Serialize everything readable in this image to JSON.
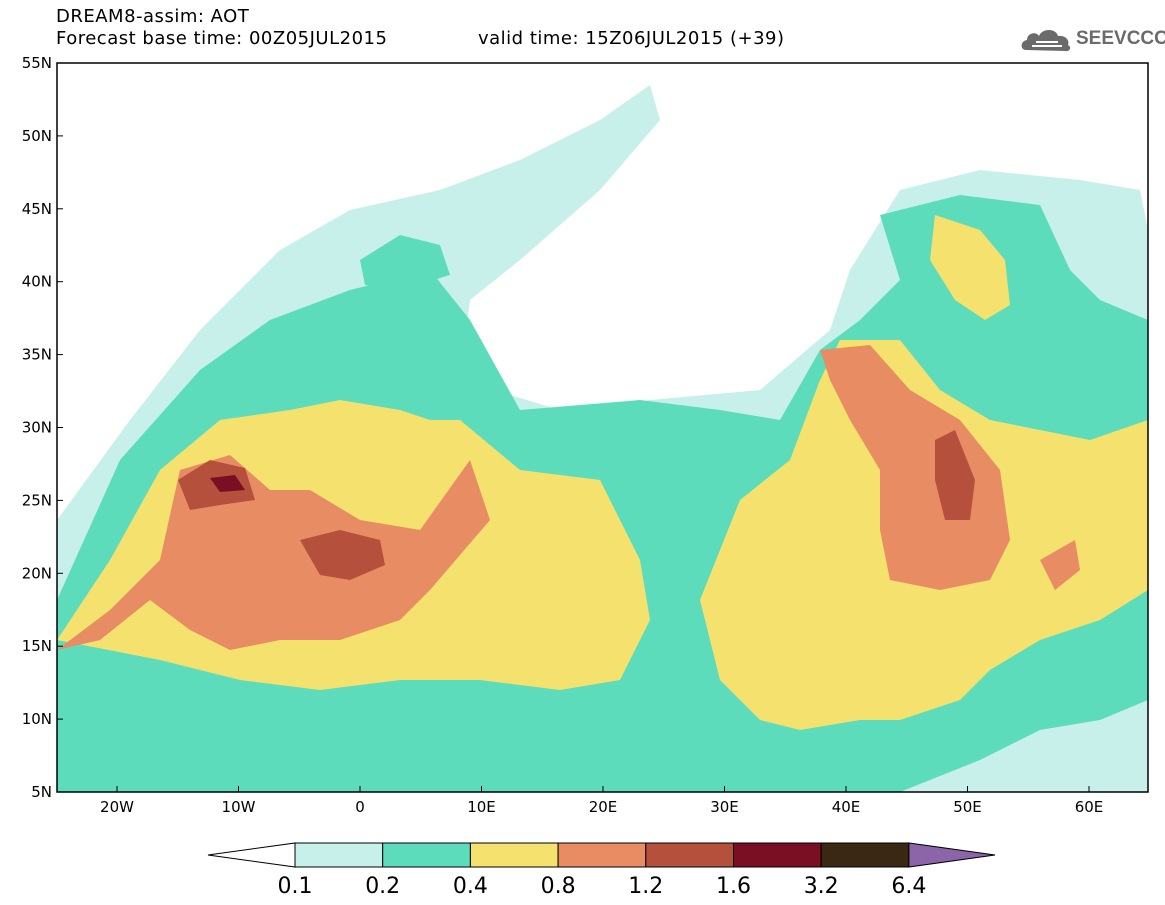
{
  "header": {
    "title": "DREAM8-assim: AOT",
    "base_time": "Forecast base time: 00Z05JUL2015",
    "valid_time": "valid time: 15Z06JUL2015 (+39)"
  },
  "logo": {
    "text": "SEEVCCC",
    "icon": "cloud-icon"
  },
  "map": {
    "lat_labels": [
      "55N",
      "50N",
      "45N",
      "40N",
      "35N",
      "30N",
      "25N",
      "20N",
      "15N",
      "10N",
      "5N"
    ],
    "lon_labels": [
      "20W",
      "10W",
      "0",
      "10E",
      "20E",
      "30E",
      "40E",
      "50E",
      "60E"
    ]
  },
  "colorbar": {
    "ticks": [
      "0.1",
      "0.2",
      "0.4",
      "0.8",
      "1.2",
      "1.6",
      "3.2",
      "6.4"
    ],
    "colors": [
      "#ffffff",
      "#c8f0ea",
      "#5ddcbc",
      "#f4e16e",
      "#e88c64",
      "#b4503c",
      "#7a0f23",
      "#3b2814",
      "#8c64a8"
    ]
  }
}
